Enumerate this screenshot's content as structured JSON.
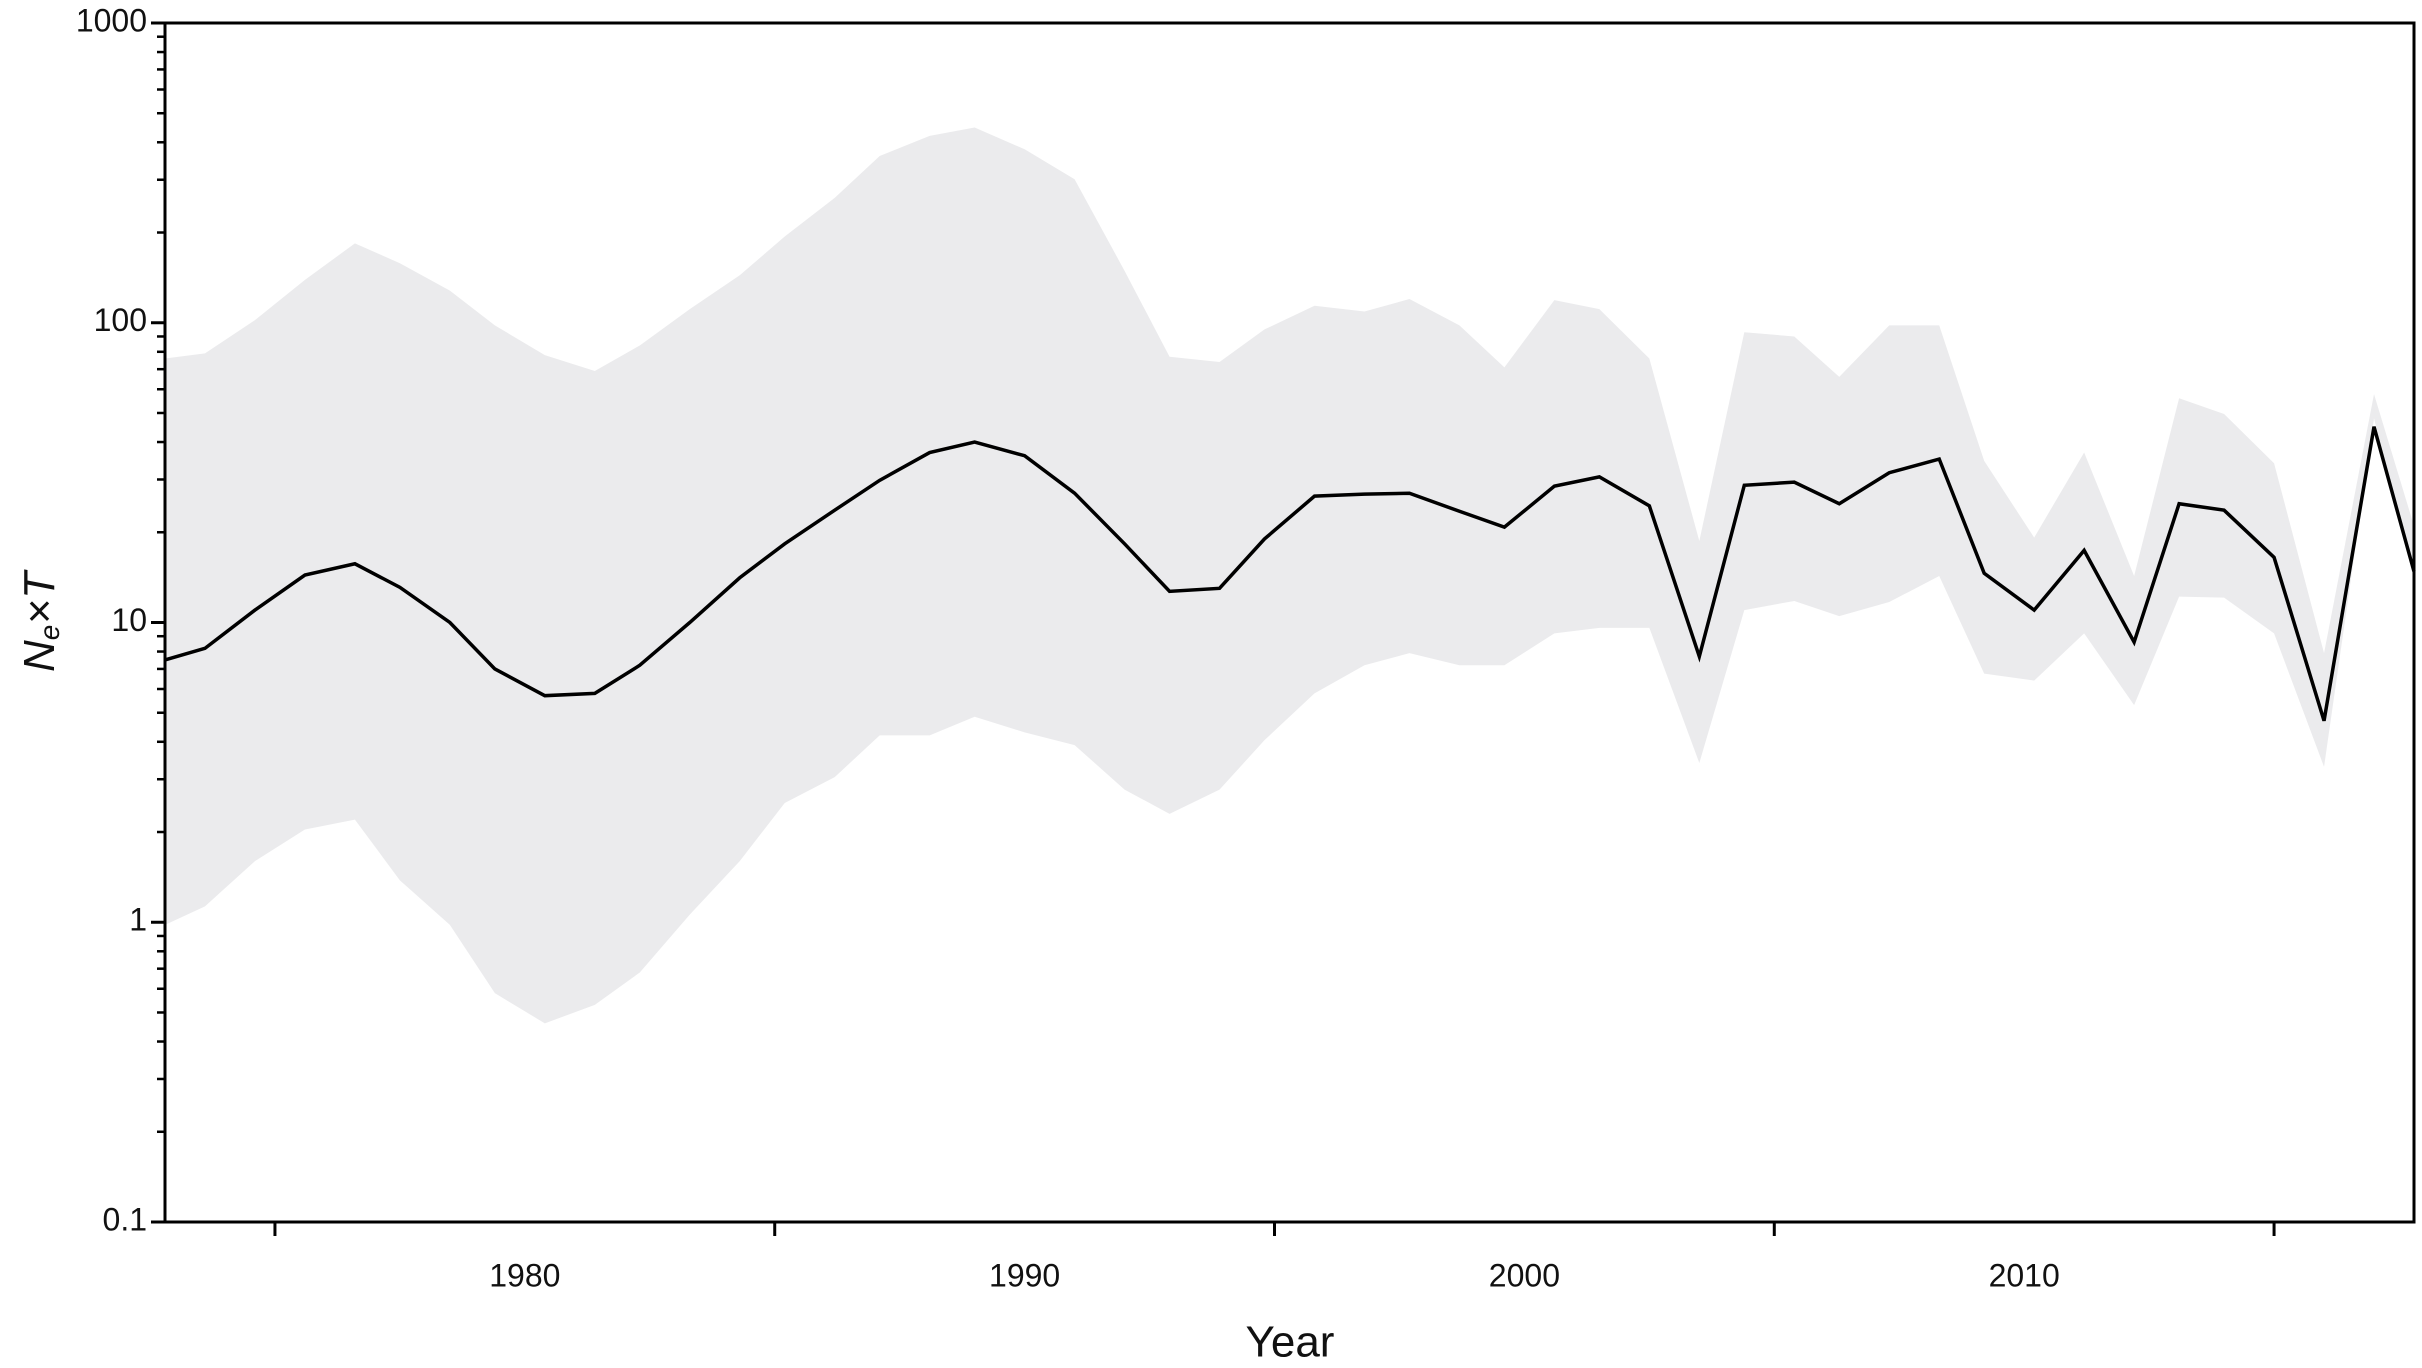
{
  "chart_data": {
    "type": "band-line",
    "xlabel": "Year",
    "ylabel": {
      "base": "N",
      "sub": "e",
      "rest": "×T"
    },
    "x": [
      1972.8,
      1973.6,
      1974.6,
      1975.6,
      1976.6,
      1977.5,
      1978.5,
      1979.4,
      1980.4,
      1981.4,
      1982.3,
      1983.3,
      1984.3,
      1985.2,
      1986.2,
      1987.1,
      1988.1,
      1989.0,
      1990.0,
      1991.0,
      1992.0,
      1992.9,
      1993.9,
      1994.8,
      1995.8,
      1996.8,
      1997.7,
      1998.7,
      1999.6,
      2000.6,
      2001.5,
      2002.5,
      2003.5,
      2004.4,
      2005.4,
      2006.3,
      2007.3,
      2008.3,
      2009.2,
      2010.2,
      2011.2,
      2012.2,
      2013.1,
      2014.0,
      2015.0,
      2016.0,
      2017.0,
      2017.8
    ],
    "values": [
      7.5,
      8.2,
      11,
      14.4,
      15.7,
      13.1,
      10,
      7.0,
      5.7,
      5.8,
      7.2,
      10,
      14.1,
      18.3,
      23.7,
      29.8,
      36.9,
      40,
      36,
      27,
      18.3,
      12.7,
      13,
      19,
      26.4,
      26.8,
      27,
      23.5,
      20.8,
      28.5,
      30.6,
      24.5,
      7.7,
      28.7,
      29.4,
      24.9,
      31.6,
      35.1,
      14.6,
      11,
      17.4,
      8.6,
      24.9,
      23.7,
      16.5,
      4.7,
      45,
      14.8
    ],
    "upper": [
      76,
      79,
      102,
      139,
      184,
      158,
      128,
      98,
      78,
      69,
      84,
      111,
      144,
      194,
      261,
      360,
      420,
      448,
      379,
      301,
      149,
      77,
      74,
      95,
      114,
      109,
      120,
      98,
      71,
      119,
      111,
      76,
      18.7,
      93,
      90,
      66,
      98,
      98,
      34.6,
      19.2,
      36.9,
      14.3,
      56,
      49.6,
      34,
      7.9,
      57.8,
      21
    ],
    "lower": [
      0.98,
      1.13,
      1.6,
      2.04,
      2.2,
      1.38,
      0.98,
      0.58,
      0.46,
      0.53,
      0.68,
      1.06,
      1.6,
      2.5,
      3.05,
      4.2,
      4.2,
      4.85,
      4.3,
      3.9,
      2.77,
      2.3,
      2.77,
      4.05,
      5.8,
      7.2,
      7.9,
      7.2,
      7.2,
      9.2,
      9.6,
      9.6,
      3.4,
      11,
      11.8,
      10.5,
      11.7,
      14.3,
      6.75,
      6.4,
      9.2,
      5.3,
      12.2,
      12.1,
      9.2,
      3.3,
      48,
      13.9
    ],
    "color": "#000000",
    "band_color": "#ebebed",
    "xlim": [
      1972.8,
      2017.8
    ],
    "xticks": [
      1980,
      1990,
      2000,
      2010
    ],
    "xminorticks": [
      1975,
      1985,
      1995,
      2005,
      2015
    ],
    "ylog": true,
    "ylim": [
      0.1,
      1000
    ],
    "yticks": [
      0.1,
      1,
      10,
      100,
      1000
    ],
    "yminorticks": [
      0.2,
      0.3,
      0.4,
      0.5,
      0.6,
      0.7,
      0.8,
      0.9,
      2,
      3,
      4,
      5,
      6,
      7,
      8,
      9,
      20,
      30,
      40,
      50,
      60,
      70,
      80,
      90,
      200,
      300,
      400,
      500,
      600,
      700,
      800,
      900
    ]
  }
}
